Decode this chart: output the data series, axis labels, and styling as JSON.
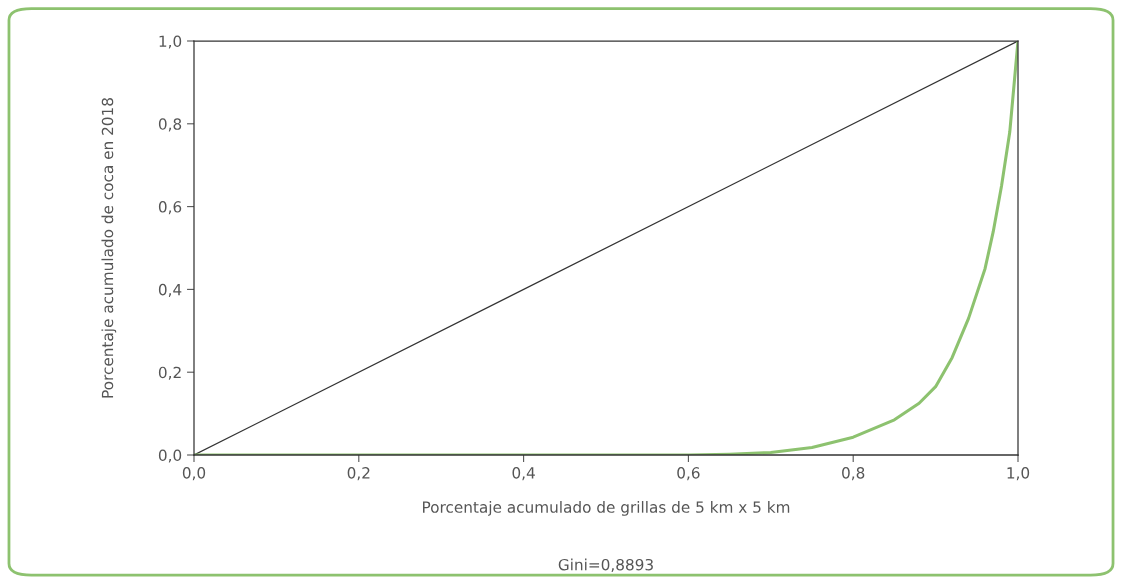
{
  "chart_data": {
    "type": "line",
    "xlabel": "Porcentaje acumulado de grillas de 5 km x 5 km",
    "ylabel": "Porcentaje acumulado de coca en 2018",
    "annotations": [
      "Gini=0,8893"
    ],
    "series": [
      {
        "color": "#333333",
        "x": [
          0,
          1
        ],
        "values": [
          0,
          1
        ]
      },
      {
        "color": "#8dc26f",
        "x": [
          0,
          0.6,
          0.65,
          0.7,
          0.75,
          0.8,
          0.85,
          0.88,
          0.9,
          0.92,
          0.94,
          0.96,
          0.97,
          0.98,
          0.99,
          1.0
        ],
        "values": [
          0,
          0.0,
          0.002,
          0.006,
          0.018,
          0.043,
          0.085,
          0.125,
          0.165,
          0.235,
          0.33,
          0.45,
          0.54,
          0.65,
          0.78,
          1.0
        ]
      }
    ],
    "xlim": [
      0,
      1
    ],
    "ylim": [
      0,
      1
    ],
    "xticks": [
      {
        "value": 0,
        "label": "0,0"
      },
      {
        "value": 0.2,
        "label": "0,2"
      },
      {
        "value": 0.4,
        "label": "0,4"
      },
      {
        "value": 0.6,
        "label": "0,6"
      },
      {
        "value": 0.8,
        "label": "0,8"
      },
      {
        "value": 1,
        "label": "1,0"
      }
    ],
    "yticks": [
      {
        "value": 0,
        "label": "0,0"
      },
      {
        "value": 0.2,
        "label": "0,2"
      },
      {
        "value": 0.4,
        "label": "0,4"
      },
      {
        "value": 0.6,
        "label": "0,6"
      },
      {
        "value": 0.8,
        "label": "0,8"
      },
      {
        "value": 1,
        "label": "1,0"
      }
    ],
    "grid": false,
    "legend": false
  }
}
